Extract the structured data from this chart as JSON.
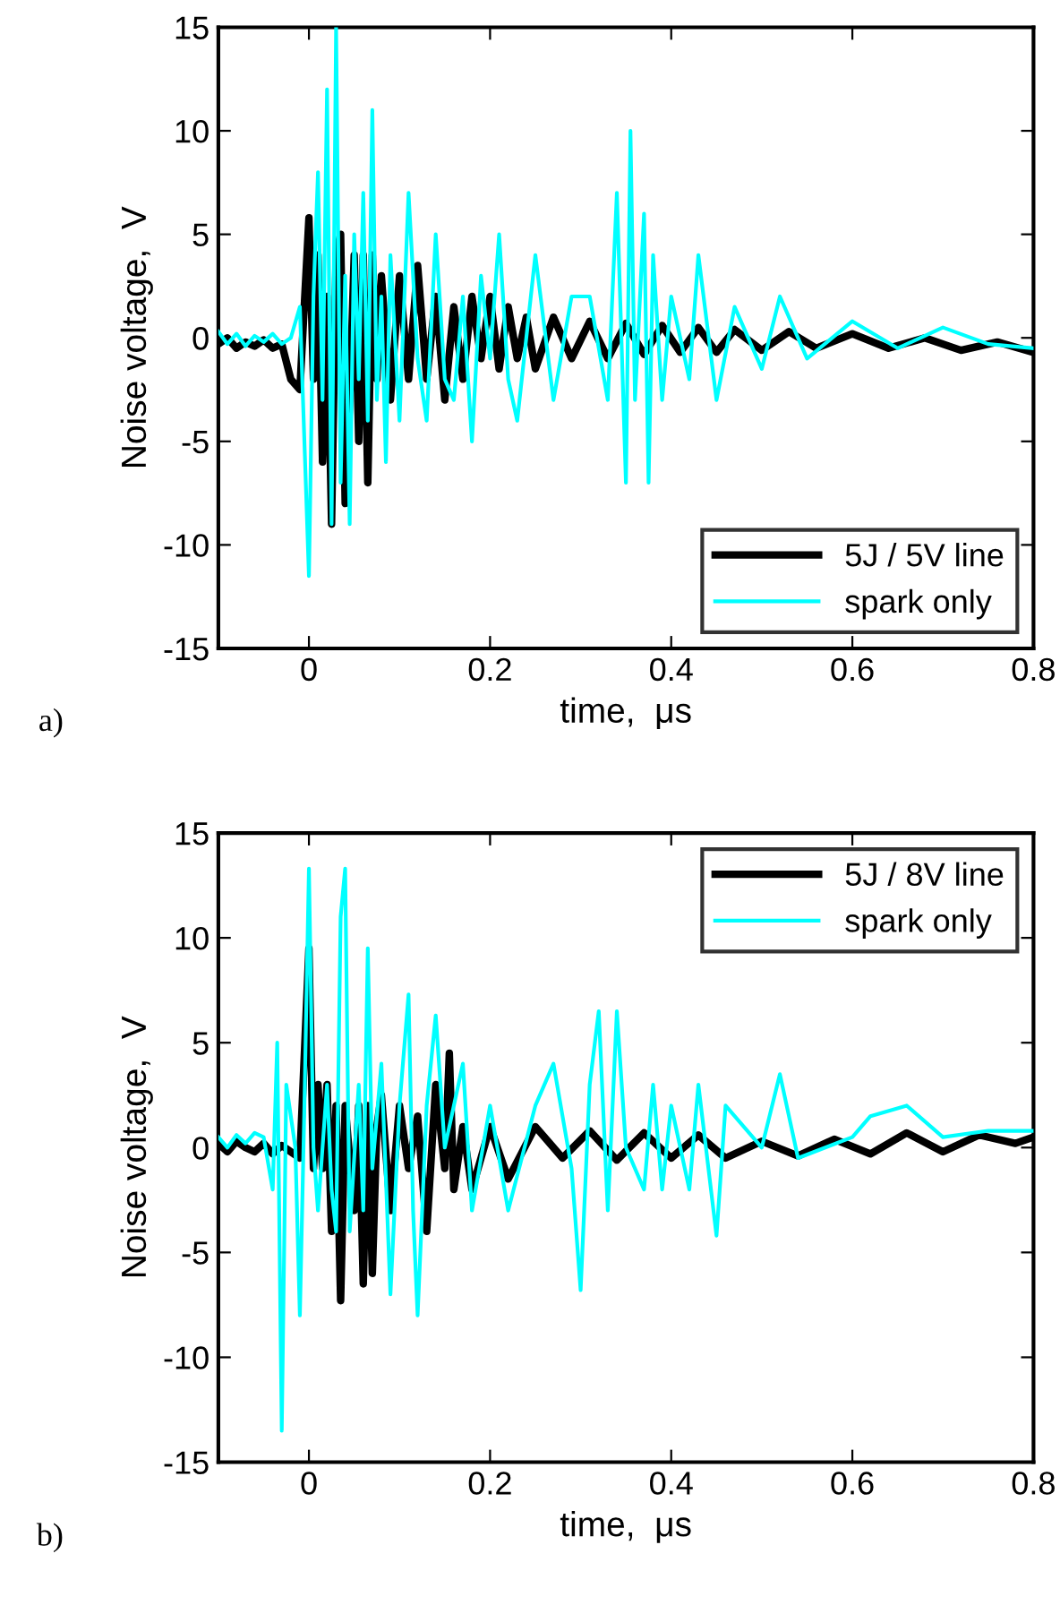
{
  "chart_data": [
    {
      "type": "line",
      "xlabel": "time,  μs",
      "ylabel": "Noise voltage,  V",
      "annotations": [
        "a)"
      ],
      "xlim": [
        -0.1,
        0.8
      ],
      "ylim": [
        -15,
        15
      ],
      "xticks": [
        0,
        0.2,
        0.4,
        0.6,
        0.8
      ],
      "yticks": [
        -15,
        -10,
        -5,
        0,
        5,
        10,
        15
      ],
      "grid": false,
      "legend": "bottom right",
      "line_style": "solid",
      "marker": "none",
      "series": [
        {
          "name": "5J / 5V line",
          "color": "#000000",
          "x": [
            -0.1,
            -0.09,
            -0.08,
            -0.07,
            -0.06,
            -0.05,
            -0.04,
            -0.03,
            -0.02,
            -0.01,
            0.0,
            0.005,
            0.01,
            0.015,
            0.02,
            0.025,
            0.03,
            0.035,
            0.04,
            0.045,
            0.05,
            0.055,
            0.06,
            0.065,
            0.07,
            0.075,
            0.08,
            0.09,
            0.1,
            0.11,
            0.12,
            0.13,
            0.14,
            0.15,
            0.16,
            0.17,
            0.18,
            0.19,
            0.2,
            0.21,
            0.22,
            0.23,
            0.24,
            0.25,
            0.27,
            0.29,
            0.31,
            0.33,
            0.35,
            0.37,
            0.39,
            0.41,
            0.43,
            0.45,
            0.47,
            0.5,
            0.53,
            0.56,
            0.6,
            0.64,
            0.68,
            0.72,
            0.76,
            0.8
          ],
          "values": [
            -0.3,
            0.0,
            -0.5,
            -0.2,
            -0.4,
            -0.1,
            -0.5,
            -0.3,
            -2,
            -2.5,
            5.8,
            -2,
            4,
            -6,
            2,
            -9,
            4,
            5,
            -8,
            -3,
            4,
            -5,
            4,
            -7,
            4,
            -2,
            3,
            -3,
            3,
            -2,
            3.5,
            -2,
            2,
            -3,
            1.5,
            -2,
            2,
            -1,
            2,
            -1.5,
            1.5,
            -1,
            1,
            -1.5,
            1,
            -1,
            0.8,
            -1,
            0.7,
            -0.8,
            0.6,
            -0.7,
            0.5,
            -0.7,
            0.4,
            -0.6,
            0.3,
            -0.5,
            0.2,
            -0.5,
            0.0,
            -0.6,
            -0.2,
            -0.7
          ]
        },
        {
          "name": "spark only",
          "color": "#00ffff",
          "x": [
            -0.1,
            -0.09,
            -0.08,
            -0.07,
            -0.06,
            -0.05,
            -0.04,
            -0.03,
            -0.02,
            -0.01,
            0.0,
            0.005,
            0.01,
            0.015,
            0.02,
            0.025,
            0.03,
            0.035,
            0.04,
            0.045,
            0.05,
            0.055,
            0.06,
            0.065,
            0.07,
            0.075,
            0.08,
            0.085,
            0.09,
            0.1,
            0.11,
            0.12,
            0.13,
            0.14,
            0.15,
            0.16,
            0.17,
            0.18,
            0.19,
            0.2,
            0.21,
            0.22,
            0.23,
            0.25,
            0.27,
            0.29,
            0.31,
            0.33,
            0.34,
            0.35,
            0.355,
            0.36,
            0.37,
            0.375,
            0.38,
            0.39,
            0.4,
            0.42,
            0.43,
            0.45,
            0.47,
            0.5,
            0.52,
            0.55,
            0.6,
            0.65,
            0.7,
            0.75,
            0.8
          ],
          "values": [
            0.3,
            -0.3,
            0.2,
            -0.4,
            0.1,
            -0.2,
            0.2,
            -0.3,
            0.0,
            1.5,
            -11.5,
            2,
            8,
            -3,
            12,
            -9,
            15,
            -7,
            3,
            -9,
            5,
            -2,
            7,
            -4,
            11,
            -3,
            2,
            -6,
            4,
            -4,
            7,
            -1,
            -4,
            5,
            -2,
            -3,
            2,
            -5,
            3,
            -1,
            5,
            -2,
            -4,
            4,
            -3,
            2,
            2,
            -3,
            7,
            -7,
            10,
            -3,
            6,
            -7,
            4,
            -3,
            2,
            -2,
            4,
            -3,
            1.5,
            -1.5,
            2,
            -1,
            0.8,
            -0.5,
            0.5,
            -0.3,
            -0.5
          ]
        }
      ]
    },
    {
      "type": "line",
      "xlabel": "time,  μs",
      "ylabel": "Noise voltage,  V",
      "annotations": [
        "b)"
      ],
      "xlim": [
        -0.1,
        0.8
      ],
      "ylim": [
        -15,
        15
      ],
      "xticks": [
        0,
        0.2,
        0.4,
        0.6,
        0.8
      ],
      "yticks": [
        -15,
        -10,
        -5,
        0,
        5,
        10,
        15
      ],
      "grid": false,
      "legend": "top right",
      "line_style": "solid",
      "marker": "none",
      "series": [
        {
          "name": "5J / 8V line",
          "color": "#000000",
          "x": [
            -0.1,
            -0.09,
            -0.08,
            -0.07,
            -0.06,
            -0.05,
            -0.04,
            -0.03,
            -0.02,
            -0.01,
            0.0,
            0.005,
            0.01,
            0.015,
            0.02,
            0.025,
            0.03,
            0.035,
            0.04,
            0.05,
            0.055,
            0.06,
            0.065,
            0.07,
            0.075,
            0.08,
            0.09,
            0.1,
            0.11,
            0.12,
            0.13,
            0.14,
            0.15,
            0.155,
            0.16,
            0.17,
            0.18,
            0.2,
            0.22,
            0.25,
            0.28,
            0.31,
            0.34,
            0.37,
            0.4,
            0.43,
            0.46,
            0.5,
            0.54,
            0.58,
            0.62,
            0.66,
            0.7,
            0.74,
            0.78,
            0.8
          ],
          "values": [
            0.2,
            -0.2,
            0.3,
            0.0,
            -0.2,
            0.2,
            -0.3,
            0.1,
            -0.2,
            -0.5,
            9.5,
            -1,
            3,
            -1,
            3,
            -4,
            2,
            -7.3,
            2,
            -3,
            2,
            -6.5,
            2,
            -6,
            1,
            2.5,
            -3,
            2,
            -1,
            1.5,
            -4,
            3,
            -1,
            4.5,
            -2,
            1,
            -2,
            1,
            -1.5,
            1,
            -0.5,
            0.8,
            -0.6,
            0.7,
            -0.5,
            0.6,
            -0.5,
            0.3,
            -0.4,
            0.4,
            -0.3,
            0.7,
            -0.2,
            0.6,
            0.2,
            0.5
          ]
        },
        {
          "name": "spark only",
          "color": "#00ffff",
          "x": [
            -0.1,
            -0.09,
            -0.08,
            -0.07,
            -0.06,
            -0.05,
            -0.04,
            -0.035,
            -0.03,
            -0.025,
            -0.015,
            -0.01,
            -0.005,
            0.0,
            0.005,
            0.01,
            0.02,
            0.025,
            0.03,
            0.035,
            0.04,
            0.045,
            0.055,
            0.06,
            0.065,
            0.07,
            0.08,
            0.09,
            0.1,
            0.11,
            0.115,
            0.12,
            0.13,
            0.14,
            0.15,
            0.17,
            0.18,
            0.2,
            0.22,
            0.25,
            0.27,
            0.29,
            0.3,
            0.31,
            0.32,
            0.33,
            0.34,
            0.35,
            0.37,
            0.38,
            0.39,
            0.4,
            0.42,
            0.43,
            0.45,
            0.46,
            0.5,
            0.52,
            0.54,
            0.6,
            0.62,
            0.66,
            0.7,
            0.75,
            0.8
          ],
          "values": [
            0.5,
            0.0,
            0.6,
            0.2,
            0.7,
            0.5,
            -2,
            5,
            -13.5,
            3,
            0,
            -8,
            2,
            13.3,
            0,
            -3,
            3,
            -2,
            -4,
            11,
            13.3,
            -4,
            3,
            -3,
            9.5,
            -1,
            4,
            -7,
            2,
            7.3,
            -3,
            -8,
            2,
            6.3,
            0,
            4,
            -3,
            2,
            -3,
            2,
            4,
            -1,
            -6.8,
            3,
            6.5,
            -3,
            6.5,
            0,
            -2,
            3,
            -2,
            2,
            -2,
            3,
            -4.2,
            2,
            0,
            3.5,
            -0.5,
            0.5,
            1.5,
            2,
            0.5,
            0.8,
            0.8
          ]
        }
      ]
    }
  ]
}
